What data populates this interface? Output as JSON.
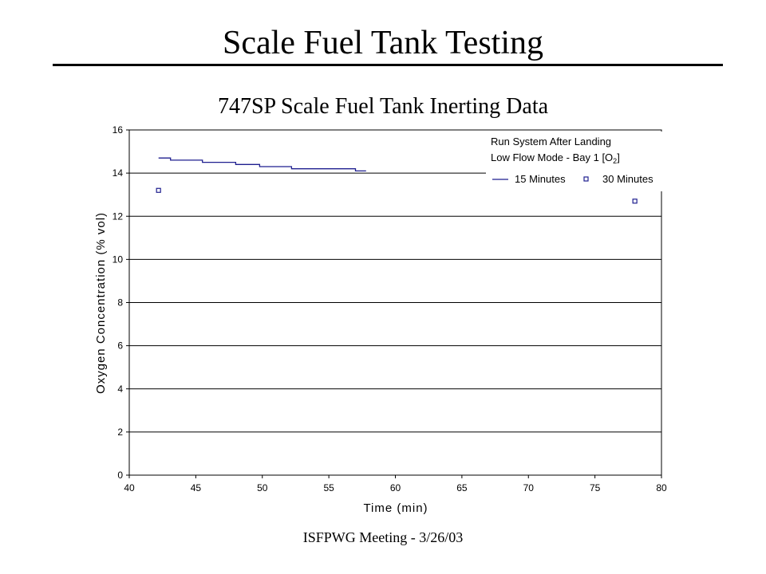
{
  "slide": {
    "title": "Scale Fuel Tank Testing",
    "footer": "ISFPWG Meeting - 3/26/03"
  },
  "chart_data": {
    "type": "line",
    "title": "747SP Scale Fuel Tank Inerting Data",
    "xlabel": "Time (min)",
    "ylabel": "Oxygen Concentration (% vol)",
    "xlim": [
      40,
      80
    ],
    "ylim": [
      0,
      16
    ],
    "xticks": [
      40,
      45,
      50,
      55,
      60,
      65,
      70,
      75,
      80
    ],
    "yticks": [
      0,
      2,
      4,
      6,
      8,
      10,
      12,
      14,
      16
    ],
    "grid": "horizontal",
    "legend_position": "top-right",
    "legend_title_line1": "Run System After Landing",
    "legend_title_line2": "Low Flow Mode - Bay 1 [O",
    "legend_title_subscript": "2",
    "legend_title_close": "]",
    "series_color": "#1f1f8f",
    "series": [
      {
        "name": "15 Minutes",
        "style": "line",
        "x": [
          42.2,
          43.1,
          43.1,
          45.5,
          45.5,
          48.0,
          48.0,
          49.8,
          49.8,
          52.2,
          52.2,
          57.0,
          57.0,
          57.8
        ],
        "y": [
          14.7,
          14.7,
          14.6,
          14.6,
          14.5,
          14.5,
          14.4,
          14.4,
          14.3,
          14.3,
          14.2,
          14.2,
          14.1,
          14.1
        ]
      },
      {
        "name": "30 Minutes",
        "style": "marker",
        "marker": "hollow-square",
        "x": [
          42.2,
          78.0
        ],
        "y": [
          13.2,
          12.7
        ]
      }
    ]
  }
}
